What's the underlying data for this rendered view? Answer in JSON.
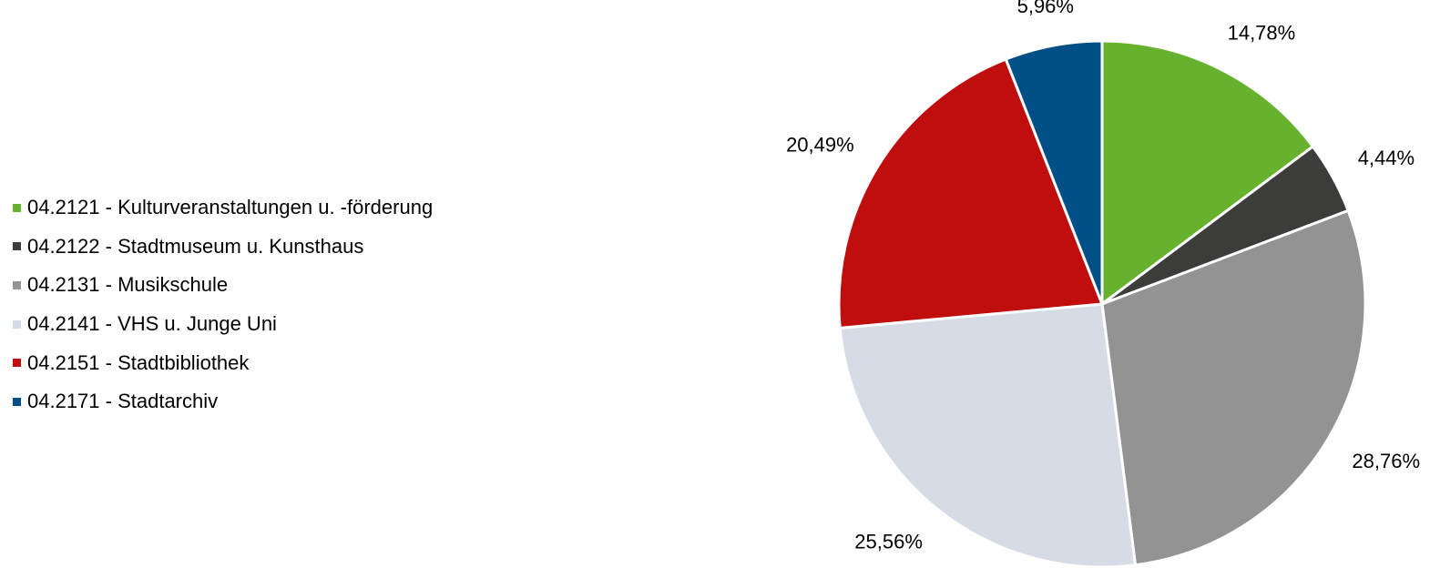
{
  "chart_data": {
    "type": "pie",
    "title": "",
    "legend_position": "left",
    "start_angle_deg": 0,
    "direction": "clockwise",
    "slices": [
      {
        "name": "04.2121 - Kulturveranstaltungen u. -förderung",
        "value": 14.78,
        "label": "14,78%",
        "color": "#66b22e"
      },
      {
        "name": "04.2122 - Stadtmuseum u. Kunsthaus",
        "value": 4.44,
        "label": "4,44%",
        "color": "#3c3c3b"
      },
      {
        "name": "04.2131 - Musikschule",
        "value": 28.76,
        "label": "28,76%",
        "color": "#939393"
      },
      {
        "name": "04.2141 - VHS u. Junge Uni",
        "value": 25.56,
        "label": "25,56%",
        "color": "#d5dce6"
      },
      {
        "name": "04.2151 - Stadtbibliothek",
        "value": 20.49,
        "label": "20,49%",
        "color": "#c00d0e"
      },
      {
        "name": "04.2171 - Stadtarchiv",
        "value": 5.96,
        "label": "5,96%",
        "color": "#004f86"
      }
    ]
  }
}
